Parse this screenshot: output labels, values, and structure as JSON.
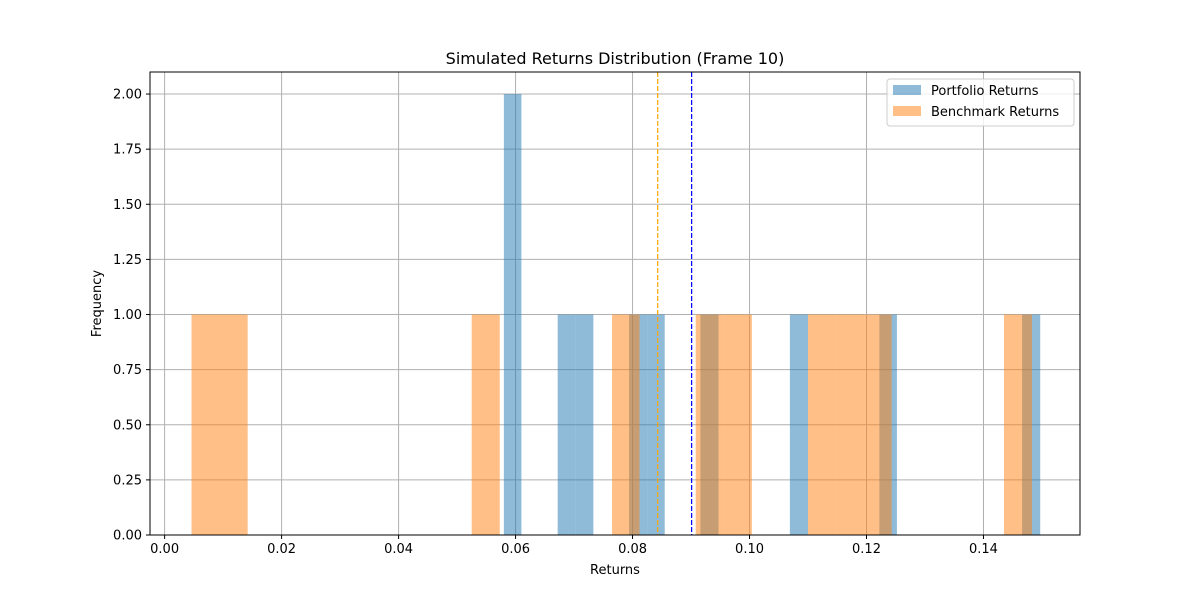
{
  "chart_data": {
    "type": "bar",
    "title": "Simulated Returns Distribution (Frame 10)",
    "xlabel": "Returns",
    "ylabel": "Frequency",
    "xlim": [
      -0.0025,
      0.1565
    ],
    "ylim": [
      0,
      2.1
    ],
    "xticks": [
      "0.00",
      "0.02",
      "0.04",
      "0.06",
      "0.08",
      "0.10",
      "0.12",
      "0.14"
    ],
    "xtick_values": [
      0.0,
      0.02,
      0.04,
      0.06,
      0.08,
      0.1,
      0.12,
      0.14
    ],
    "yticks": [
      "0.00",
      "0.25",
      "0.50",
      "0.75",
      "1.00",
      "1.25",
      "1.50",
      "1.75",
      "2.00"
    ],
    "ytick_values": [
      0.0,
      0.25,
      0.5,
      0.75,
      1.0,
      1.25,
      1.5,
      1.75,
      2.0
    ],
    "grid": true,
    "legend_position": "top-right",
    "series": [
      {
        "name": "Portfolio Returns",
        "color": "#1f77b4",
        "opacity": 0.5,
        "bins": [
          {
            "x0": 0.058,
            "x1": 0.061,
            "count": 2
          },
          {
            "x0": 0.0672,
            "x1": 0.0702,
            "count": 1
          },
          {
            "x0": 0.0702,
            "x1": 0.0733,
            "count": 1
          },
          {
            "x0": 0.0794,
            "x1": 0.0825,
            "count": 1
          },
          {
            "x0": 0.0825,
            "x1": 0.0855,
            "count": 1
          },
          {
            "x0": 0.0916,
            "x1": 0.0947,
            "count": 1
          },
          {
            "x0": 0.1069,
            "x1": 0.11,
            "count": 1
          },
          {
            "x0": 0.1222,
            "x1": 0.1252,
            "count": 1
          },
          {
            "x0": 0.1466,
            "x1": 0.1497,
            "count": 1
          }
        ],
        "mean": 0.0901,
        "mean_color": "#0000ff"
      },
      {
        "name": "Benchmark Returns",
        "color": "#ff7f0e",
        "opacity": 0.5,
        "bins": [
          {
            "x0": 0.0046,
            "x1": 0.0094,
            "count": 1
          },
          {
            "x0": 0.0094,
            "x1": 0.0142,
            "count": 1
          },
          {
            "x0": 0.0525,
            "x1": 0.0573,
            "count": 1
          },
          {
            "x0": 0.0765,
            "x1": 0.0812,
            "count": 1
          },
          {
            "x0": 0.0908,
            "x1": 0.0956,
            "count": 1
          },
          {
            "x0": 0.0956,
            "x1": 0.1004,
            "count": 1
          },
          {
            "x0": 0.11,
            "x1": 0.1148,
            "count": 1
          },
          {
            "x0": 0.1148,
            "x1": 0.1196,
            "count": 1
          },
          {
            "x0": 0.1196,
            "x1": 0.1243,
            "count": 1
          },
          {
            "x0": 0.1435,
            "x1": 0.1483,
            "count": 1
          }
        ],
        "mean": 0.0843,
        "mean_color": "#ffa500"
      }
    ]
  }
}
